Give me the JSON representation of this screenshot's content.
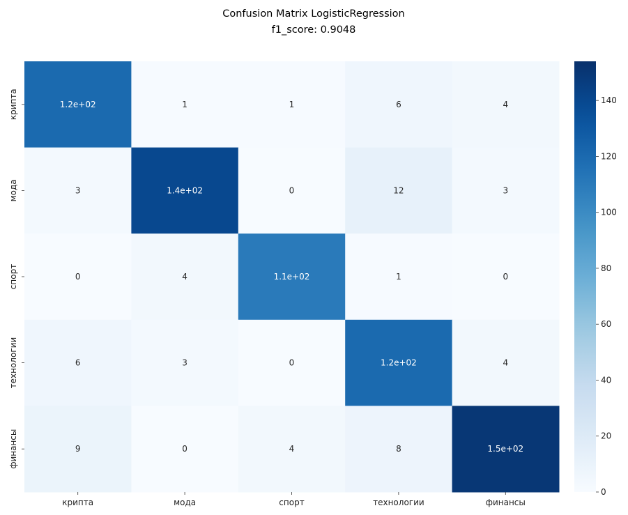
{
  "chart_data": {
    "type": "heatmap",
    "title": "Confusion Matrix LogisticRegression",
    "subtitle": "f1_score: 0.9048",
    "row_labels": [
      "крипта",
      "мода",
      "спорт",
      "технологии",
      "финансы"
    ],
    "col_labels": [
      "крипта",
      "мода",
      "спорт",
      "технологии",
      "финансы"
    ],
    "values": [
      [
        120,
        1,
        1,
        6,
        4
      ],
      [
        3,
        140,
        0,
        12,
        3
      ],
      [
        0,
        4,
        110,
        1,
        0
      ],
      [
        6,
        3,
        0,
        120,
        4
      ],
      [
        9,
        0,
        4,
        8,
        150
      ]
    ],
    "annotations": [
      [
        "1.2e+02",
        "1",
        "1",
        "6",
        "4"
      ],
      [
        "3",
        "1.4e+02",
        "0",
        "12",
        "3"
      ],
      [
        "0",
        "4",
        "1.1e+02",
        "1",
        "0"
      ],
      [
        "6",
        "3",
        "0",
        "1.2e+02",
        "4"
      ],
      [
        "9",
        "0",
        "4",
        "8",
        "1.5e+02"
      ]
    ],
    "colormap": "Blues",
    "vmin": 0,
    "vmax": 154,
    "colorbar_ticks": [
      0,
      20,
      40,
      60,
      80,
      100,
      120,
      140
    ],
    "colorbar_tick_labels": [
      "0",
      "20",
      "40",
      "60",
      "80",
      "100",
      "120",
      "140"
    ],
    "xlabel": "",
    "ylabel": ""
  }
}
